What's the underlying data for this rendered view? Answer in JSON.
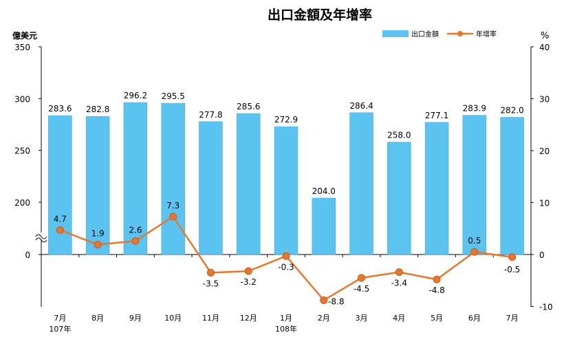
{
  "chart_data": {
    "type": "bar+line",
    "title": "出口金額及年增率",
    "left_unit": "億美元",
    "right_unit": "%",
    "categories": [
      "7月",
      "8月",
      "9月",
      "10月",
      "11月",
      "12月",
      "1月",
      "2月",
      "3月",
      "4月",
      "5月",
      "6月",
      "7月"
    ],
    "year_labels": {
      "0": "107年",
      "6": "108年"
    },
    "left_axis": {
      "ticks": [
        "350",
        "300",
        "250",
        "200",
        "0"
      ]
    },
    "right_axis": {
      "ylim": [
        -10,
        40
      ],
      "ticks": [
        "40",
        "30",
        "20",
        "10",
        "0",
        "-10"
      ]
    },
    "series": [
      {
        "name": "出口金額",
        "type": "bar",
        "axis": "left",
        "color": "#5bc3f0",
        "values": [
          283.6,
          282.8,
          296.2,
          295.5,
          277.8,
          285.6,
          272.9,
          204.0,
          286.4,
          258.0,
          277.1,
          283.9,
          282.0
        ],
        "labels": [
          "283.6",
          "282.8",
          "296.2",
          "295.5",
          "277.8",
          "285.6",
          "272.9",
          "204.0",
          "286.4",
          "258.0",
          "277.1",
          "283.9",
          "282.0"
        ]
      },
      {
        "name": "年增率",
        "type": "line",
        "axis": "right",
        "color": "#e8762d",
        "values": [
          4.7,
          1.9,
          2.6,
          7.3,
          -3.5,
          -3.2,
          -0.3,
          -8.8,
          -4.5,
          -3.4,
          -4.8,
          0.5,
          -0.5
        ],
        "labels": [
          "4.7",
          "1.9",
          "2.6",
          "7.3",
          "-3.5",
          "-3.2",
          "-0.3",
          "-8.8",
          "-4.5",
          "-3.4",
          "-4.8",
          "0.5",
          "-0.5"
        ]
      }
    ],
    "legend_position": "top-right",
    "axis_break": "left axis broken between 0 and 200"
  }
}
